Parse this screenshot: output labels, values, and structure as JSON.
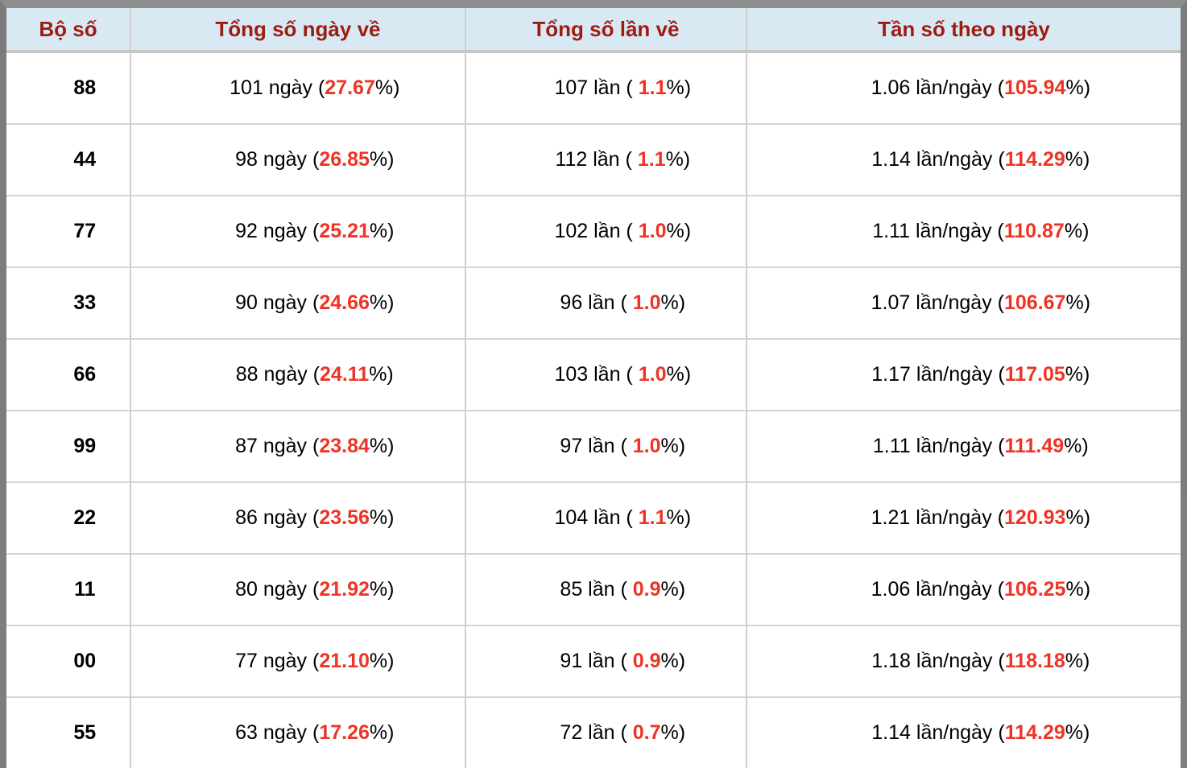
{
  "colors": {
    "frame_gray": "#7e7e7e",
    "header_background": "#d9e9f3",
    "header_text": "#9e1b12",
    "highlight_red": "#ee3424",
    "grid_line": "#cfcfcf"
  },
  "table": {
    "header": {
      "columns": [
        "Bộ số",
        "Tổng số ngày về",
        "Tổng số lần về",
        "Tần số theo ngày"
      ]
    },
    "rows": [
      {
        "pair": "88",
        "days": {
          "pre": "101 ngày (",
          "hl": "27.67",
          "post": "%)"
        },
        "times": {
          "pre": "107 lần ( ",
          "hl": "1.1",
          "post": "%)"
        },
        "freq": {
          "pre": "1.06 lần/ngày (",
          "hl": "105.94",
          "post": "%)"
        }
      },
      {
        "pair": "44",
        "days": {
          "pre": "98 ngày (",
          "hl": "26.85",
          "post": "%)"
        },
        "times": {
          "pre": "112 lần ( ",
          "hl": "1.1",
          "post": "%)"
        },
        "freq": {
          "pre": "1.14 lần/ngày (",
          "hl": "114.29",
          "post": "%)"
        }
      },
      {
        "pair": "77",
        "days": {
          "pre": "92 ngày (",
          "hl": "25.21",
          "post": "%)"
        },
        "times": {
          "pre": "102 lần ( ",
          "hl": "1.0",
          "post": "%)"
        },
        "freq": {
          "pre": "1.11 lần/ngày (",
          "hl": "110.87",
          "post": "%)"
        }
      },
      {
        "pair": "33",
        "days": {
          "pre": "90 ngày (",
          "hl": "24.66",
          "post": "%)"
        },
        "times": {
          "pre": "96 lần ( ",
          "hl": "1.0",
          "post": "%)"
        },
        "freq": {
          "pre": "1.07 lần/ngày (",
          "hl": "106.67",
          "post": "%)"
        }
      },
      {
        "pair": "66",
        "days": {
          "pre": "88 ngày (",
          "hl": "24.11",
          "post": "%)"
        },
        "times": {
          "pre": "103 lần ( ",
          "hl": "1.0",
          "post": "%)"
        },
        "freq": {
          "pre": "1.17 lần/ngày (",
          "hl": "117.05",
          "post": "%)"
        }
      },
      {
        "pair": "99",
        "days": {
          "pre": "87 ngày (",
          "hl": "23.84",
          "post": "%)"
        },
        "times": {
          "pre": "97 lần ( ",
          "hl": "1.0",
          "post": "%)"
        },
        "freq": {
          "pre": "1.11 lần/ngày (",
          "hl": "111.49",
          "post": "%)"
        }
      },
      {
        "pair": "22",
        "days": {
          "pre": "86 ngày (",
          "hl": "23.56",
          "post": "%)"
        },
        "times": {
          "pre": "104 lần ( ",
          "hl": "1.1",
          "post": "%)"
        },
        "freq": {
          "pre": "1.21 lần/ngày (",
          "hl": "120.93",
          "post": "%)"
        }
      },
      {
        "pair": "11",
        "days": {
          "pre": "80 ngày (",
          "hl": "21.92",
          "post": "%)"
        },
        "times": {
          "pre": "85 lần ( ",
          "hl": "0.9",
          "post": "%)"
        },
        "freq": {
          "pre": "1.06 lần/ngày (",
          "hl": "106.25",
          "post": "%)"
        }
      },
      {
        "pair": "00",
        "days": {
          "pre": "77 ngày (",
          "hl": "21.10",
          "post": "%)"
        },
        "times": {
          "pre": "91 lần ( ",
          "hl": "0.9",
          "post": "%)"
        },
        "freq": {
          "pre": "1.18 lần/ngày (",
          "hl": "118.18",
          "post": "%)"
        }
      },
      {
        "pair": "55",
        "days": {
          "pre": "63 ngày (",
          "hl": "17.26",
          "post": "%)"
        },
        "times": {
          "pre": "72 lần ( ",
          "hl": "0.7",
          "post": "%)"
        },
        "freq": {
          "pre": "1.14 lần/ngày (",
          "hl": "114.29",
          "post": "%)"
        }
      }
    ]
  }
}
